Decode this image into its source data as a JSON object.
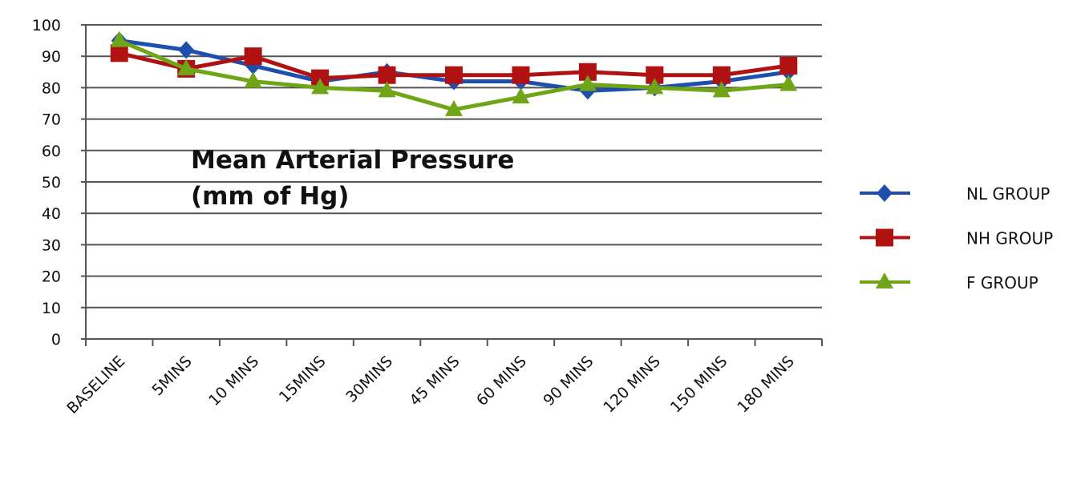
{
  "chart_data": {
    "type": "line",
    "title": [
      "Mean Arterial Pressure",
      "(mm of Hg)"
    ],
    "xlabel": "",
    "ylabel": "",
    "ylim": [
      0,
      100
    ],
    "yticks": [
      0,
      10,
      20,
      30,
      40,
      50,
      60,
      70,
      80,
      90,
      100
    ],
    "grid": true,
    "legend_position": "right",
    "categories": [
      "BASELINE",
      "5MINS",
      "10 MINS",
      "15MINS",
      "30MINS",
      "45 MINS",
      "60 MINS",
      "90 MINS",
      "120 MINS",
      "150 MINS",
      "180 MINS"
    ],
    "series": [
      {
        "name": "NL GROUP",
        "color": "#1f4fad",
        "marker": "diamond",
        "values": [
          95,
          92,
          87,
          82,
          85,
          82,
          82,
          79,
          80,
          82,
          85
        ]
      },
      {
        "name": "NH GROUP",
        "color": "#b01212",
        "marker": "square",
        "values": [
          91,
          86,
          90,
          83,
          84,
          84,
          84,
          85,
          84,
          84,
          87
        ]
      },
      {
        "name": "F GROUP",
        "color": "#6fa516",
        "marker": "triangle",
        "values": [
          95,
          86,
          82,
          80,
          79,
          73,
          77,
          81,
          80,
          79,
          81
        ]
      }
    ]
  }
}
